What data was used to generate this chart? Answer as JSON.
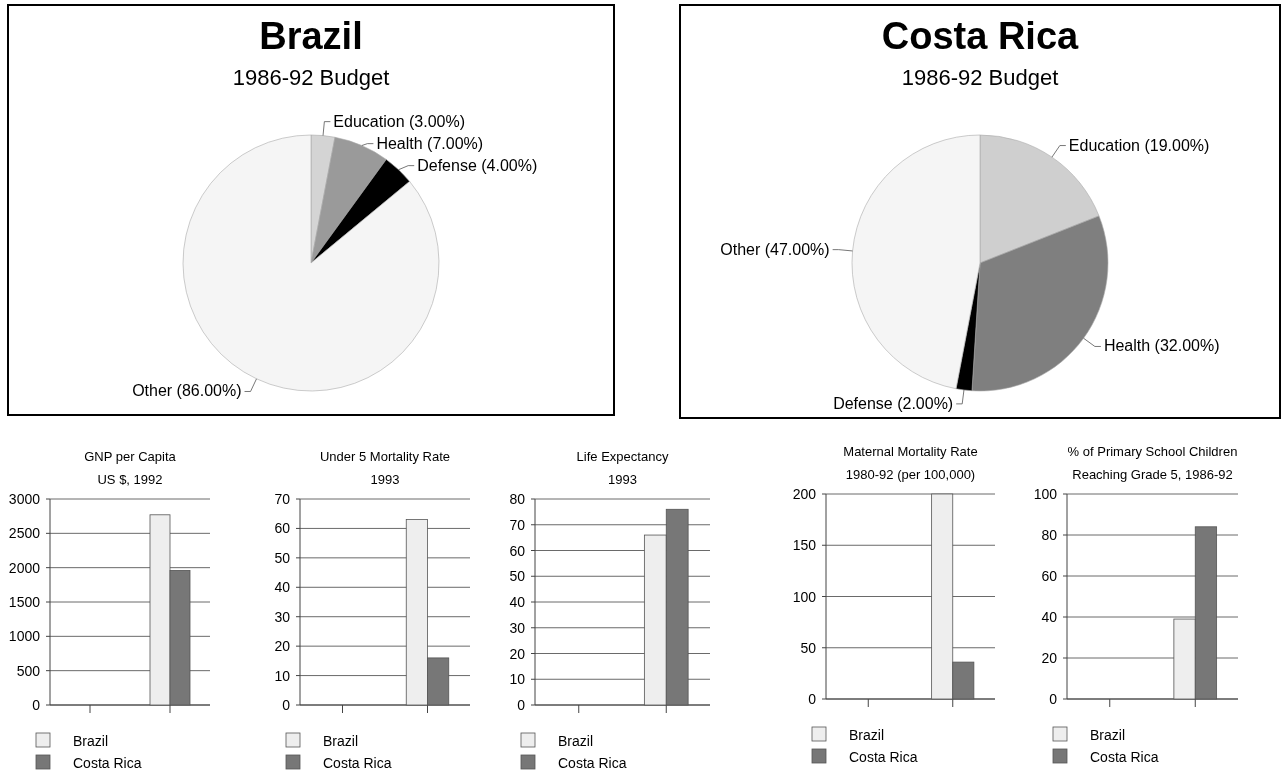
{
  "chart_data": [
    {
      "type": "pie",
      "title": "Brazil",
      "subtitle": "1986-92 Budget",
      "categories": [
        "Education",
        "Health",
        "Defense",
        "Other"
      ],
      "values": [
        3,
        7,
        4,
        86
      ],
      "value_labels": [
        "(3.00%)",
        "(7.00%)",
        "(4.00%)",
        "(86.00%)"
      ],
      "colors": [
        "#d4d4d4",
        "#9a9a9a",
        "#000000",
        "#f5f5f5"
      ]
    },
    {
      "type": "pie",
      "title": "Costa Rica",
      "subtitle": "1986-92 Budget",
      "categories": [
        "Education",
        "Health",
        "Defense",
        "Other"
      ],
      "values": [
        19,
        32,
        2,
        47
      ],
      "value_labels": [
        "(19.00%)",
        "(32.00%)",
        "(2.00%)",
        "(47.00%)"
      ],
      "colors": [
        "#cfcfcf",
        "#7f7f7f",
        "#000000",
        "#f5f5f5"
      ]
    },
    {
      "type": "bar",
      "title": "GNP per Capita",
      "subtitle": "US $, 1992",
      "categories": [
        null,
        null
      ],
      "series": [
        {
          "name": "Brazil",
          "color": "#eeeeee",
          "values": [
            null,
            2770
          ]
        },
        {
          "name": "Costa Rica",
          "color": "#777777",
          "values": [
            null,
            1960
          ]
        }
      ],
      "ylim": [
        0,
        3000
      ],
      "yticks": [
        0,
        500,
        1000,
        1500,
        2000,
        2500,
        3000
      ],
      "grid": "y",
      "legend": "bottom"
    },
    {
      "type": "bar",
      "title": "Under 5 Mortality Rate",
      "subtitle": "1993",
      "categories": [
        null,
        null
      ],
      "series": [
        {
          "name": "Brazil",
          "color": "#eeeeee",
          "values": [
            null,
            63
          ]
        },
        {
          "name": "Costa Rica",
          "color": "#777777",
          "values": [
            null,
            16
          ]
        }
      ],
      "ylim": [
        0,
        70
      ],
      "yticks": [
        0,
        10,
        20,
        30,
        40,
        50,
        60,
        70
      ],
      "grid": "y",
      "legend": "bottom"
    },
    {
      "type": "bar",
      "title": "Life Expectancy",
      "subtitle": "1993",
      "categories": [
        null,
        null
      ],
      "series": [
        {
          "name": "Brazil",
          "color": "#eeeeee",
          "values": [
            null,
            66
          ]
        },
        {
          "name": "Costa Rica",
          "color": "#777777",
          "values": [
            null,
            76
          ]
        }
      ],
      "ylim": [
        0,
        80
      ],
      "yticks": [
        0,
        10,
        20,
        30,
        40,
        50,
        60,
        70,
        80
      ],
      "grid": "y",
      "legend": "bottom"
    },
    {
      "type": "bar",
      "title": "Maternal Mortality Rate",
      "subtitle": "1980-92 (per 100,000)",
      "categories": [
        null,
        null
      ],
      "series": [
        {
          "name": "Brazil",
          "color": "#eeeeee",
          "values": [
            null,
            200
          ]
        },
        {
          "name": "Costa Rica",
          "color": "#777777",
          "values": [
            null,
            36
          ]
        }
      ],
      "ylim": [
        0,
        200
      ],
      "yticks": [
        0,
        50,
        100,
        150,
        200
      ],
      "grid": "y",
      "legend": "bottom"
    },
    {
      "type": "bar",
      "title": "% of Primary School Children",
      "subtitle": "Reaching Grade 5, 1986-92",
      "categories": [
        null,
        null
      ],
      "series": [
        {
          "name": "Brazil",
          "color": "#eeeeee",
          "values": [
            null,
            39
          ]
        },
        {
          "name": "Costa Rica",
          "color": "#777777",
          "values": [
            null,
            84
          ]
        }
      ],
      "ylim": [
        0,
        100
      ],
      "yticks": [
        0,
        20,
        40,
        60,
        80,
        100
      ],
      "grid": "y",
      "legend": "bottom"
    }
  ]
}
